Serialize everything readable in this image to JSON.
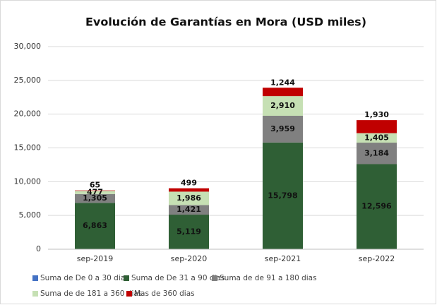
{
  "chart_data": {
    "type": "stacked_bar",
    "title": "Evolución de Garantías en Mora (USD miles)",
    "categories": [
      "sep-2019",
      "sep-2020",
      "sep-2021",
      "sep-2022"
    ],
    "series": [
      {
        "name": "Suma de De 0 a 30 dias",
        "color": "#4472c4",
        "values": [
          0,
          0,
          0,
          0
        ]
      },
      {
        "name": "Suma de De 31 a 90 dias",
        "color": "#2f5f35",
        "values": [
          6863,
          5119,
          15798,
          12596
        ],
        "value_labels": [
          "6,863",
          "5,119",
          "15,798",
          "12,596"
        ]
      },
      {
        "name": "Suma de de 91 a 180 dias",
        "color": "#808080",
        "values": [
          1305,
          1421,
          3959,
          3184
        ],
        "value_labels": [
          "1,305",
          "1,421",
          "3,959",
          "3,184"
        ]
      },
      {
        "name": "Suma de de 181 a 360 dias",
        "color": "#c6e0b4",
        "values": [
          477,
          1986,
          2910,
          1405
        ],
        "value_labels": [
          "477",
          "1,986",
          "2,910",
          "1,405"
        ]
      },
      {
        "name": "Mas de 360 dias",
        "color": "#c00000",
        "values": [
          65,
          499,
          1244,
          1930
        ],
        "value_labels": [
          "65",
          "499",
          "1,244",
          "1,930"
        ]
      }
    ],
    "ylim": [
      0,
      30000
    ],
    "yticks": [
      0,
      {
        "value": 5000,
        "label": "5,000"
      },
      {
        "value": 10000,
        "label": "10,000"
      },
      {
        "value": 15000,
        "label": "15,000"
      },
      {
        "value": 20000,
        "label": "20,000"
      },
      {
        "value": 25000,
        "label": "25,000"
      },
      {
        "value": 30000,
        "label": "30,000"
      }
    ],
    "grid": true
  }
}
